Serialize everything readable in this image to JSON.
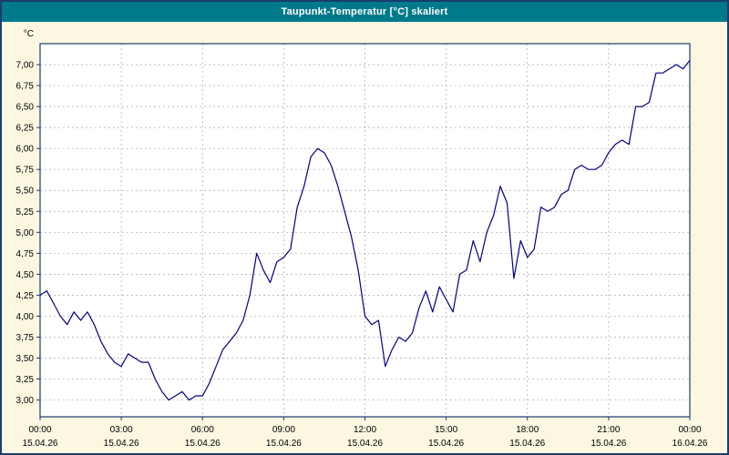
{
  "window": {
    "title": "Taupunkt-Temperatur [°C] skaliert"
  },
  "colors": {
    "title_bar_bg": "#00798B",
    "title_text": "#FFFFFF",
    "page_bg": "#FCF7E1",
    "plot_bg": "#FFFFFF",
    "line": "#000080",
    "grid": "#A8A8A8",
    "axis": "#1B3C6E",
    "tick_text": "#000000"
  },
  "chart_data": {
    "type": "line",
    "title": "Taupunkt-Temperatur [°C] skaliert",
    "xlabel": "",
    "ylabel": "°C",
    "ylim": [
      3.0,
      7.0
    ],
    "render_value_range": [
      2.8,
      7.25
    ],
    "grid": "dashed",
    "legend_position": "none",
    "y_ticks": [
      {
        "value": 7.0,
        "label": "7,00"
      },
      {
        "value": 6.75,
        "label": "6,75"
      },
      {
        "value": 6.5,
        "label": "6,50"
      },
      {
        "value": 6.25,
        "label": "6,25"
      },
      {
        "value": 6.0,
        "label": "6,00"
      },
      {
        "value": 5.75,
        "label": "5,75"
      },
      {
        "value": 5.5,
        "label": "5,50"
      },
      {
        "value": 5.25,
        "label": "5,25"
      },
      {
        "value": 5.0,
        "label": "5,00"
      },
      {
        "value": 4.75,
        "label": "4,75"
      },
      {
        "value": 4.5,
        "label": "4,50"
      },
      {
        "value": 4.25,
        "label": "4,25"
      },
      {
        "value": 4.0,
        "label": "4,00"
      },
      {
        "value": 3.75,
        "label": "3,75"
      },
      {
        "value": 3.5,
        "label": "3,50"
      },
      {
        "value": 3.25,
        "label": "3,25"
      },
      {
        "value": 3.0,
        "label": "3,00"
      }
    ],
    "x_ticks": [
      {
        "h": 0,
        "time": "00:00",
        "date": "15.04.26"
      },
      {
        "h": 3,
        "time": "03:00",
        "date": "15.04.26"
      },
      {
        "h": 6,
        "time": "06:00",
        "date": "15.04.26"
      },
      {
        "h": 9,
        "time": "09:00",
        "date": "15.04.26"
      },
      {
        "h": 12,
        "time": "12:00",
        "date": "15.04.26"
      },
      {
        "h": 15,
        "time": "15:00",
        "date": "15.04.26"
      },
      {
        "h": 18,
        "time": "18:00",
        "date": "15.04.26"
      },
      {
        "h": 21,
        "time": "21:00",
        "date": "15.04.26"
      },
      {
        "h": 24,
        "time": "00:00",
        "date": "16.04.26"
      }
    ],
    "series": [
      {
        "name": "Taupunkt-Temperatur",
        "color": "#000080",
        "x_unit": "hours",
        "x_start": 0,
        "x_step": 0.25,
        "values": [
          4.25,
          4.3,
          4.15,
          4.0,
          3.9,
          4.05,
          3.95,
          4.05,
          3.9,
          3.7,
          3.55,
          3.45,
          3.4,
          3.55,
          3.5,
          3.45,
          3.45,
          3.25,
          3.1,
          3.0,
          3.05,
          3.1,
          3.0,
          3.05,
          3.05,
          3.2,
          3.4,
          3.6,
          3.7,
          3.8,
          3.95,
          4.25,
          4.75,
          4.55,
          4.4,
          4.65,
          4.7,
          4.8,
          5.3,
          5.55,
          5.9,
          6.0,
          5.95,
          5.8,
          5.55,
          5.25,
          4.95,
          4.55,
          4.0,
          3.9,
          3.95,
          3.4,
          3.6,
          3.75,
          3.7,
          3.8,
          4.1,
          4.3,
          4.05,
          4.35,
          4.2,
          4.05,
          4.5,
          4.55,
          4.9,
          4.65,
          5.0,
          5.2,
          5.55,
          5.35,
          4.45,
          4.9,
          4.7,
          4.8,
          5.3,
          5.25,
          5.3,
          5.45,
          5.5,
          5.75,
          5.8,
          5.75,
          5.75,
          5.8,
          5.95,
          6.05,
          6.1,
          6.05,
          6.5,
          6.5,
          6.55,
          6.9,
          6.9,
          6.95,
          7.0,
          6.95,
          7.05
        ]
      }
    ]
  }
}
